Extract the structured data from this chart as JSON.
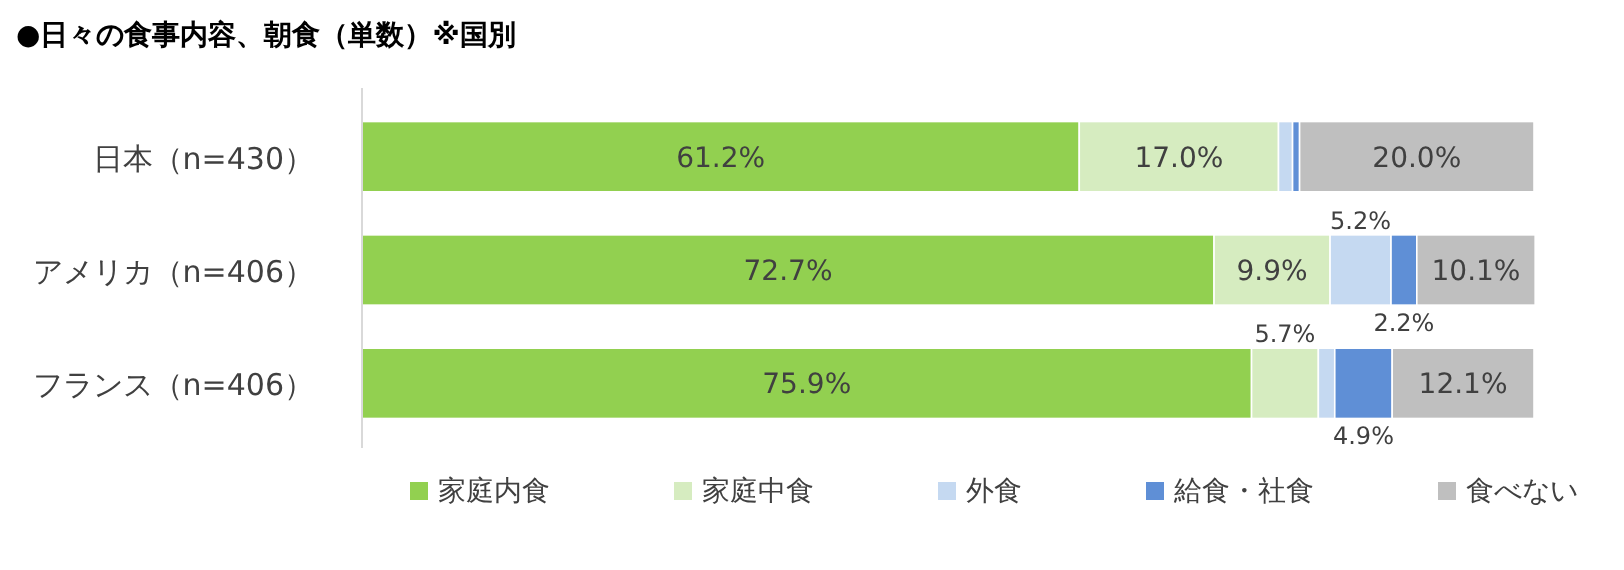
{
  "chart_data": {
    "type": "bar",
    "orientation": "horizontal",
    "stacked": true,
    "title": "●日々の食事内容、朝食（単数）※国別",
    "categories": [
      "日本（n=430）",
      "アメリカ（n=406）",
      "フランス（n=406）"
    ],
    "xlim": [
      0,
      100
    ],
    "legend": "bottom",
    "series": [
      {
        "name": "家庭内食",
        "color": "#92d050",
        "values": [
          61.2,
          72.7,
          75.9
        ],
        "value_labels": [
          "61.2%",
          "72.7%",
          "75.9%"
        ]
      },
      {
        "name": "家庭中食",
        "color": "#d6ecc0",
        "values": [
          17.0,
          9.9,
          5.7
        ],
        "value_labels": [
          "17.0%",
          "9.9%",
          "5.7%"
        ]
      },
      {
        "name": "外食",
        "color": "#c5d9f1",
        "values": [
          1.2,
          5.2,
          1.4
        ],
        "value_labels": [
          null,
          "5.2%",
          null
        ]
      },
      {
        "name": "給食・社食",
        "color": "#5f8fd6",
        "values": [
          0.6,
          2.2,
          4.9
        ],
        "value_labels": [
          null,
          "2.2%",
          "4.9%"
        ]
      },
      {
        "name": "食べない",
        "color": "#bfbfbf",
        "values": [
          20.0,
          10.1,
          12.1
        ],
        "value_labels": [
          "20.0%",
          "10.1%",
          "12.1%"
        ]
      }
    ]
  }
}
